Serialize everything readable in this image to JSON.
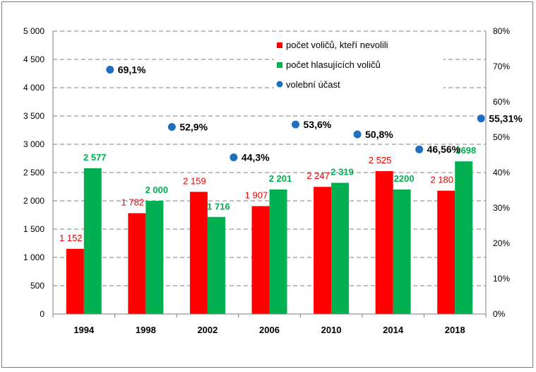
{
  "chart_data": {
    "type": "bar",
    "categories": [
      "1994",
      "1998",
      "2002",
      "2006",
      "2010",
      "2014",
      "2018"
    ],
    "ylim": [
      0,
      5000
    ],
    "y2lim": [
      0,
      80
    ],
    "y_ticks": [
      "0",
      "500",
      "1 000",
      "1 500",
      "2 000",
      "2 500",
      "3 000",
      "3 500",
      "4 000",
      "4 500",
      "5 000"
    ],
    "y2_ticks": [
      "0%",
      "10%",
      "20%",
      "30%",
      "40%",
      "50%",
      "60%",
      "70%",
      "80%"
    ],
    "grid": "horizontal dashed",
    "legend_position": "top-right",
    "series": [
      {
        "name": "počet voličů, kteří nevolili",
        "kind": "bar",
        "color": "#ff0000",
        "label_color": "#e60000",
        "values": [
          1152,
          1782,
          2159,
          1907,
          2247,
          2525,
          2180
        ],
        "labels": [
          "1 152",
          "1 782",
          "2 159",
          "1 907",
          "2 247",
          "2 525",
          "2 180"
        ]
      },
      {
        "name": "počet hlasujících voličů",
        "kind": "bar",
        "color": "#00b050",
        "label_color": "#00b050",
        "values": [
          2577,
          2000,
          1716,
          2201,
          2319,
          2200,
          2698
        ],
        "labels": [
          "2 577",
          "2 000",
          "1 716",
          "2 201",
          "2 319",
          "2200",
          "2698"
        ]
      },
      {
        "name": "volební účast",
        "kind": "scatter",
        "axis": "secondary",
        "color": "#1f6fc0",
        "values": [
          69.1,
          52.9,
          44.3,
          53.6,
          50.8,
          46.56,
          55.31
        ],
        "labels": [
          "69,1%",
          "52,9%",
          "44,3%",
          "53,6%",
          "50,8%",
          "46,56%",
          "55,31%"
        ]
      }
    ]
  }
}
